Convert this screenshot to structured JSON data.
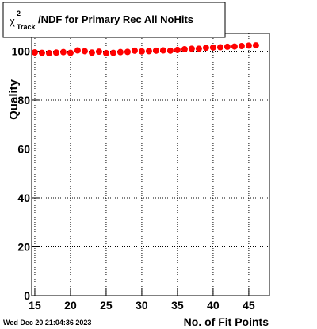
{
  "chart_data": {
    "type": "scatter",
    "title": {
      "symbol": "χ",
      "superscript": "2",
      "subscript": "Track",
      "text": "/NDF for Primary Rec All NoHits"
    },
    "x_label": "No. of Fit Points",
    "y_label": "Quality",
    "timestamp": "Wed Dec 20 21:04:36 2023",
    "x": [
      15,
      16,
      17,
      18,
      19,
      20,
      21,
      22,
      23,
      24,
      25,
      26,
      27,
      28,
      29,
      30,
      31,
      32,
      33,
      34,
      35,
      36,
      37,
      38,
      39,
      40,
      41,
      42,
      43,
      44,
      45,
      46
    ],
    "series": [
      {
        "color": "#ff0000",
        "values": [
          99.5,
          99.3,
          99.2,
          99.4,
          99.6,
          99.3,
          100.3,
          100.0,
          99.4,
          99.8,
          99.2,
          99.3,
          99.6,
          99.7,
          100.2,
          99.9,
          100.0,
          100.2,
          100.3,
          100.2,
          100.5,
          100.8,
          101.0,
          101.0,
          101.4,
          101.5,
          101.6,
          101.8,
          101.9,
          102.1,
          102.3,
          102.4
        ]
      }
    ],
    "xlim": [
      14.56,
      47.9
    ],
    "ylim": [
      0,
      107.3
    ],
    "xticks": [
      15,
      20,
      25,
      30,
      35,
      40,
      45
    ],
    "yticks": [
      0,
      20,
      40,
      60,
      80,
      100
    ],
    "grid": true
  }
}
